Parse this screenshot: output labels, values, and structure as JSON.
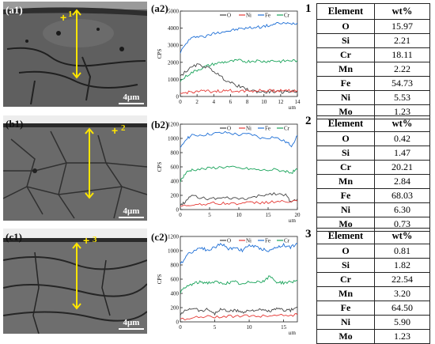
{
  "panels": [
    {
      "sem_label": "(a1)",
      "marker": "1",
      "scale": "4μm",
      "plot_label": "(a2)",
      "table_number": "1",
      "chart_data": {
        "type": "line",
        "legend": [
          "O",
          "Ni",
          "Fe",
          "Cr"
        ],
        "colors": {
          "O": "#444444",
          "Ni": "#e53935",
          "Fe": "#1e6fd6",
          "Cr": "#19a35a"
        },
        "ylabel": "CPS",
        "xlabel": "μm",
        "xlim": [
          0,
          14
        ],
        "ylim": [
          0,
          5000
        ],
        "xticks": [
          0,
          2,
          4,
          6,
          8,
          10,
          12,
          14
        ],
        "yticks": [
          0,
          1000,
          2000,
          3000,
          4000,
          5000
        ],
        "series": [
          {
            "name": "Fe",
            "points": [
              [
                0,
                2600
              ],
              [
                1,
                3300
              ],
              [
                2,
                3550
              ],
              [
                3,
                3500
              ],
              [
                4,
                3700
              ],
              [
                5,
                3800
              ],
              [
                6,
                3850
              ],
              [
                7,
                3950
              ],
              [
                8,
                4000
              ],
              [
                9,
                4050
              ],
              [
                10,
                4100
              ],
              [
                11,
                4200
              ],
              [
                12,
                4300
              ],
              [
                13,
                4250
              ],
              [
                14,
                4300
              ]
            ]
          },
          {
            "name": "Cr",
            "points": [
              [
                0,
                900
              ],
              [
                1,
                1300
              ],
              [
                2,
                1550
              ],
              [
                3,
                1750
              ],
              [
                4,
                1900
              ],
              [
                5,
                2000
              ],
              [
                6,
                2050
              ],
              [
                7,
                2100
              ],
              [
                8,
                2050
              ],
              [
                9,
                2100
              ],
              [
                10,
                2050
              ],
              [
                11,
                2100
              ],
              [
                12,
                2050
              ],
              [
                13,
                2100
              ],
              [
                14,
                2100
              ]
            ]
          },
          {
            "name": "O",
            "points": [
              [
                0,
                1200
              ],
              [
                1,
                1600
              ],
              [
                2,
                1850
              ],
              [
                3,
                1750
              ],
              [
                4,
                1500
              ],
              [
                5,
                1100
              ],
              [
                6,
                800
              ],
              [
                7,
                600
              ],
              [
                8,
                400
              ],
              [
                9,
                300
              ],
              [
                10,
                250
              ],
              [
                11,
                300
              ],
              [
                12,
                250
              ],
              [
                13,
                300
              ],
              [
                14,
                300
              ]
            ]
          },
          {
            "name": "Ni",
            "points": [
              [
                0,
                150
              ],
              [
                1,
                250
              ],
              [
                2,
                300
              ],
              [
                3,
                300
              ],
              [
                4,
                300
              ],
              [
                5,
                320
              ],
              [
                6,
                330
              ],
              [
                7,
                330
              ],
              [
                8,
                330
              ],
              [
                9,
                340
              ],
              [
                10,
                340
              ],
              [
                11,
                340
              ],
              [
                12,
                350
              ],
              [
                13,
                350
              ],
              [
                14,
                350
              ]
            ]
          }
        ]
      },
      "table": {
        "header": [
          "Element",
          "wt%"
        ],
        "rows": [
          [
            "O",
            "15.97"
          ],
          [
            "Si",
            "2.21"
          ],
          [
            "Cr",
            "18.11"
          ],
          [
            "Mn",
            "2.22"
          ],
          [
            "Fe",
            "54.73"
          ],
          [
            "Ni",
            "5.53"
          ],
          [
            "Mo",
            "1.23"
          ]
        ]
      }
    },
    {
      "sem_label": "(b1)",
      "marker": "2",
      "scale": "4μm",
      "plot_label": "(b2)",
      "table_number": "2",
      "chart_data": {
        "type": "line",
        "legend": [
          "O",
          "Ni",
          "Fe",
          "Cr"
        ],
        "colors": {
          "O": "#444444",
          "Ni": "#e53935",
          "Fe": "#1e6fd6",
          "Cr": "#19a35a"
        },
        "ylabel": "CPS",
        "xlabel": "μm",
        "xlim": [
          0,
          20
        ],
        "ylim": [
          0,
          1200
        ],
        "xticks": [
          0,
          5,
          10,
          15,
          20
        ],
        "yticks": [
          0,
          200,
          400,
          600,
          800,
          1000,
          1200
        ],
        "series": [
          {
            "name": "Fe",
            "points": [
              [
                0,
                850
              ],
              [
                1,
                1000
              ],
              [
                2,
                1040
              ],
              [
                4,
                1050
              ],
              [
                6,
                1070
              ],
              [
                8,
                1080
              ],
              [
                10,
                1050
              ],
              [
                12,
                1060
              ],
              [
                14,
                1000
              ],
              [
                16,
                1020
              ],
              [
                18,
                950
              ],
              [
                19,
                900
              ],
              [
                20,
                1040
              ]
            ]
          },
          {
            "name": "Cr",
            "points": [
              [
                0,
                400
              ],
              [
                1,
                520
              ],
              [
                2,
                560
              ],
              [
                4,
                570
              ],
              [
                6,
                590
              ],
              [
                8,
                600
              ],
              [
                10,
                580
              ],
              [
                12,
                570
              ],
              [
                14,
                550
              ],
              [
                16,
                560
              ],
              [
                18,
                540
              ],
              [
                19,
                520
              ],
              [
                20,
                560
              ]
            ]
          },
          {
            "name": "O",
            "points": [
              [
                0,
                60
              ],
              [
                1,
                120
              ],
              [
                2,
                200
              ],
              [
                4,
                160
              ],
              [
                6,
                150
              ],
              [
                8,
                160
              ],
              [
                10,
                150
              ],
              [
                12,
                160
              ],
              [
                14,
                200
              ],
              [
                16,
                230
              ],
              [
                18,
                200
              ],
              [
                19,
                100
              ],
              [
                20,
                150
              ]
            ]
          },
          {
            "name": "Ni",
            "points": [
              [
                0,
                40
              ],
              [
                2,
                70
              ],
              [
                4,
                80
              ],
              [
                6,
                90
              ],
              [
                8,
                85
              ],
              [
                10,
                90
              ],
              [
                12,
                95
              ],
              [
                14,
                100
              ],
              [
                16,
                110
              ],
              [
                18,
                110
              ],
              [
                20,
                120
              ]
            ]
          }
        ]
      },
      "table": {
        "header": [
          "Element",
          "wt%"
        ],
        "rows": [
          [
            "O",
            "0.42"
          ],
          [
            "Si",
            "1.47"
          ],
          [
            "Cr",
            "20.21"
          ],
          [
            "Mn",
            "2.84"
          ],
          [
            "Fe",
            "68.03"
          ],
          [
            "Ni",
            "6.30"
          ],
          [
            "Mo",
            "0.73"
          ]
        ]
      }
    },
    {
      "sem_label": "(c1)",
      "marker": "3",
      "scale": "4μm",
      "plot_label": "(c2)",
      "table_number": "3",
      "chart_data": {
        "type": "line",
        "legend": [
          "O",
          "Ni",
          "Fe",
          "Cr"
        ],
        "colors": {
          "O": "#444444",
          "Ni": "#e53935",
          "Fe": "#1e6fd6",
          "Cr": "#19a35a"
        },
        "ylabel": "CPS",
        "xlabel": "μm",
        "xlim": [
          0,
          17
        ],
        "ylim": [
          0,
          1200
        ],
        "xticks": [
          0,
          5,
          10,
          15
        ],
        "yticks": [
          0,
          200,
          400,
          600,
          800,
          1000,
          1200
        ],
        "series": [
          {
            "name": "Fe",
            "points": [
              [
                0,
                800
              ],
              [
                1,
                950
              ],
              [
                2,
                1000
              ],
              [
                3,
                1050
              ],
              [
                4,
                1000
              ],
              [
                5,
                1050
              ],
              [
                6,
                1100
              ],
              [
                7,
                1020
              ],
              [
                8,
                1050
              ],
              [
                9,
                1000
              ],
              [
                10,
                1080
              ],
              [
                11,
                1050
              ],
              [
                12,
                1020
              ],
              [
                13,
                1000
              ],
              [
                14,
                1050
              ],
              [
                15,
                1080
              ],
              [
                16,
                1050
              ],
              [
                17,
                1100
              ]
            ]
          },
          {
            "name": "Cr",
            "points": [
              [
                0,
                420
              ],
              [
                1,
                500
              ],
              [
                2,
                540
              ],
              [
                3,
                560
              ],
              [
                4,
                550
              ],
              [
                5,
                560
              ],
              [
                6,
                540
              ],
              [
                7,
                550
              ],
              [
                8,
                560
              ],
              [
                9,
                520
              ],
              [
                10,
                560
              ],
              [
                11,
                570
              ],
              [
                12,
                560
              ],
              [
                13,
                640
              ],
              [
                14,
                560
              ],
              [
                15,
                550
              ],
              [
                16,
                560
              ],
              [
                17,
                580
              ]
            ]
          },
          {
            "name": "O",
            "points": [
              [
                0,
                100
              ],
              [
                1,
                180
              ],
              [
                2,
                200
              ],
              [
                3,
                150
              ],
              [
                4,
                180
              ],
              [
                5,
                120
              ],
              [
                6,
                180
              ],
              [
                7,
                150
              ],
              [
                8,
                160
              ],
              [
                9,
                140
              ],
              [
                10,
                160
              ],
              [
                11,
                170
              ],
              [
                12,
                160
              ],
              [
                13,
                150
              ],
              [
                14,
                180
              ],
              [
                15,
                170
              ],
              [
                16,
                160
              ],
              [
                17,
                210
              ]
            ]
          },
          {
            "name": "Ni",
            "points": [
              [
                0,
                40
              ],
              [
                2,
                60
              ],
              [
                4,
                70
              ],
              [
                6,
                75
              ],
              [
                8,
                80
              ],
              [
                10,
                80
              ],
              [
                12,
                85
              ],
              [
                14,
                90
              ],
              [
                16,
                95
              ],
              [
                17,
                100
              ]
            ]
          }
        ]
      },
      "table": {
        "header": [
          "Element",
          "wt%"
        ],
        "rows": [
          [
            "O",
            "0.81"
          ],
          [
            "Si",
            "1.82"
          ],
          [
            "Cr",
            "22.54"
          ],
          [
            "Mn",
            "3.20"
          ],
          [
            "Fe",
            "64.50"
          ],
          [
            "Ni",
            "5.90"
          ],
          [
            "Mo",
            "1.23"
          ]
        ]
      }
    }
  ]
}
